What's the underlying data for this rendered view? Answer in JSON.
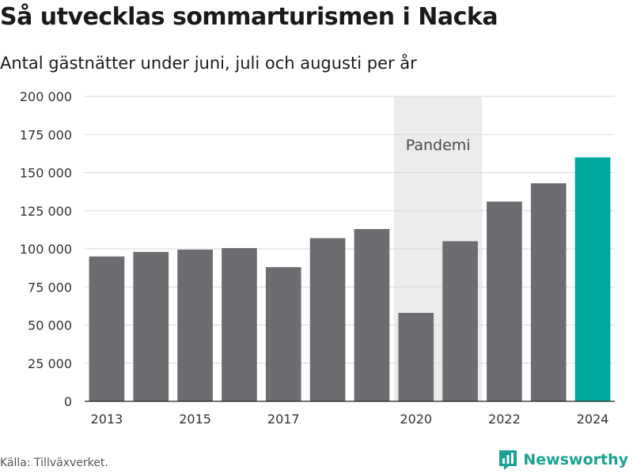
{
  "title": "Så utvecklas sommarturismen i Nacka",
  "subtitle": "Antal gästnätter under juni, juli och augusti per år",
  "source": "Källa: Tillväxverket.",
  "brand": {
    "name": "Newsworthy",
    "icon": "newsworthy-logo-icon",
    "color": "#1aa394"
  },
  "chart_data": {
    "type": "bar",
    "categories": [
      "2013",
      "2014",
      "2015",
      "2016",
      "2017",
      "2018",
      "2019",
      "2020",
      "2021",
      "2022",
      "2023",
      "2024"
    ],
    "values": [
      95000,
      98000,
      99500,
      100500,
      88000,
      107000,
      113000,
      58000,
      105000,
      131000,
      143000,
      160000
    ],
    "x_tick_labels": [
      "2013",
      "2015",
      "2017",
      "2020",
      "2022",
      "2024"
    ],
    "y_ticks": [
      0,
      25000,
      50000,
      75000,
      100000,
      125000,
      150000,
      175000,
      200000
    ],
    "y_tick_labels": [
      "0",
      "25 000",
      "50 000",
      "75 000",
      "100 000",
      "125 000",
      "150 000",
      "175 000",
      "200 000"
    ],
    "ylim": [
      0,
      200000
    ],
    "grid": true,
    "highlight_category": "2024",
    "shaded_band": {
      "from": "2020",
      "to": "2021",
      "label": "Pandemi"
    },
    "colors": {
      "bar": "#6d6c70",
      "highlight": "#00a79d",
      "band": "#ebebeb",
      "grid": "#d9d9d9"
    }
  }
}
